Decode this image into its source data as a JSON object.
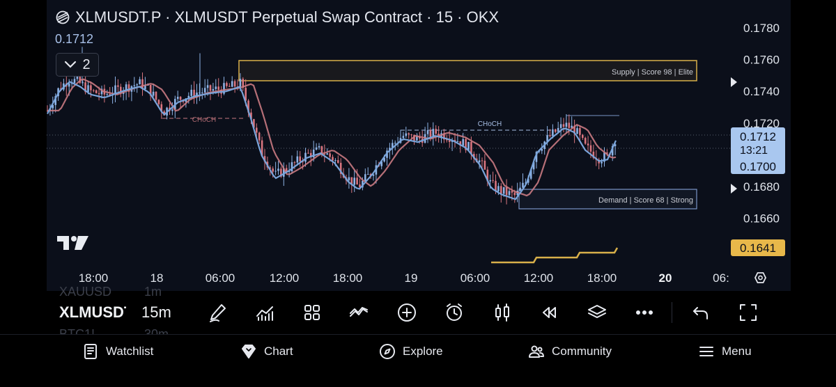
{
  "header": {
    "title": "XLMUSDT.P · XLMUSDT Perpetual Swap Contract · 15 · OKX",
    "last_value": "0.1712",
    "indicators_count": "2"
  },
  "price_axis": {
    "ticks": [
      "0.1780",
      "0.1760",
      "0.1740",
      "0.1720",
      "0.1680",
      "0.1660"
    ],
    "last_price_label": "0.1712",
    "countdown": "13:21",
    "ma_label": "0.1700",
    "lower_label": "0.1641"
  },
  "time_axis": {
    "labels": [
      "18:00",
      "18",
      "06:00",
      "12:00",
      "18:00",
      "19",
      "06:00",
      "12:00",
      "18:00",
      "20",
      "06:"
    ]
  },
  "zones": {
    "supply_label": "Supply | Score 98 | Elite",
    "demand_label": "Demand | Score 68 | Strong",
    "choch_label_1": "CHoCH",
    "choch_label_2": "CHoCH"
  },
  "colors": {
    "bull": "#8eb3e6",
    "bear": "#d9757f",
    "ma_blue": "#79a4da",
    "ma_red": "#c97a82",
    "supply_border": "#d9b04a",
    "demand_border": "#7a95c7",
    "price_badge": "#a9c7ef",
    "lower_badge": "#e8b84a"
  },
  "toolbar": {
    "symbol": "XLMUSDT",
    "interval": "15m",
    "ghost_symbol_above": "XAUUSD",
    "ghost_interval_above": "1m",
    "ghost_symbol_below": "BTC1!",
    "ghost_interval_below": "30m",
    "icons": [
      "pen-icon",
      "indicators-icon",
      "grid-icon",
      "strategies-icon",
      "add-icon",
      "alert-icon",
      "candles-icon",
      "replay-icon",
      "layers-icon",
      "more-icon",
      "undo-icon",
      "fullscreen-icon"
    ]
  },
  "bottom_nav": {
    "items": [
      {
        "label": "Watchlist",
        "icon": "watchlist-icon"
      },
      {
        "label": "Chart",
        "icon": "chart-icon"
      },
      {
        "label": "Explore",
        "icon": "compass-icon"
      },
      {
        "label": "Community",
        "icon": "community-icon"
      },
      {
        "label": "Menu",
        "icon": "menu-icon"
      }
    ]
  },
  "chart_data": {
    "type": "candlestick",
    "x": [
      "17 18:00",
      "18 00:00",
      "18 06:00",
      "18 12:00",
      "18 18:00",
      "19 00:00",
      "19 06:00",
      "19 12:00",
      "19 18:00"
    ],
    "close": [
      0.1745,
      0.1748,
      0.1742,
      0.169,
      0.169,
      0.1715,
      0.1713,
      0.169,
      0.1712
    ],
    "ylim": [
      0.164,
      0.178
    ],
    "last_price": 0.1712,
    "ma_value": 0.17
  }
}
